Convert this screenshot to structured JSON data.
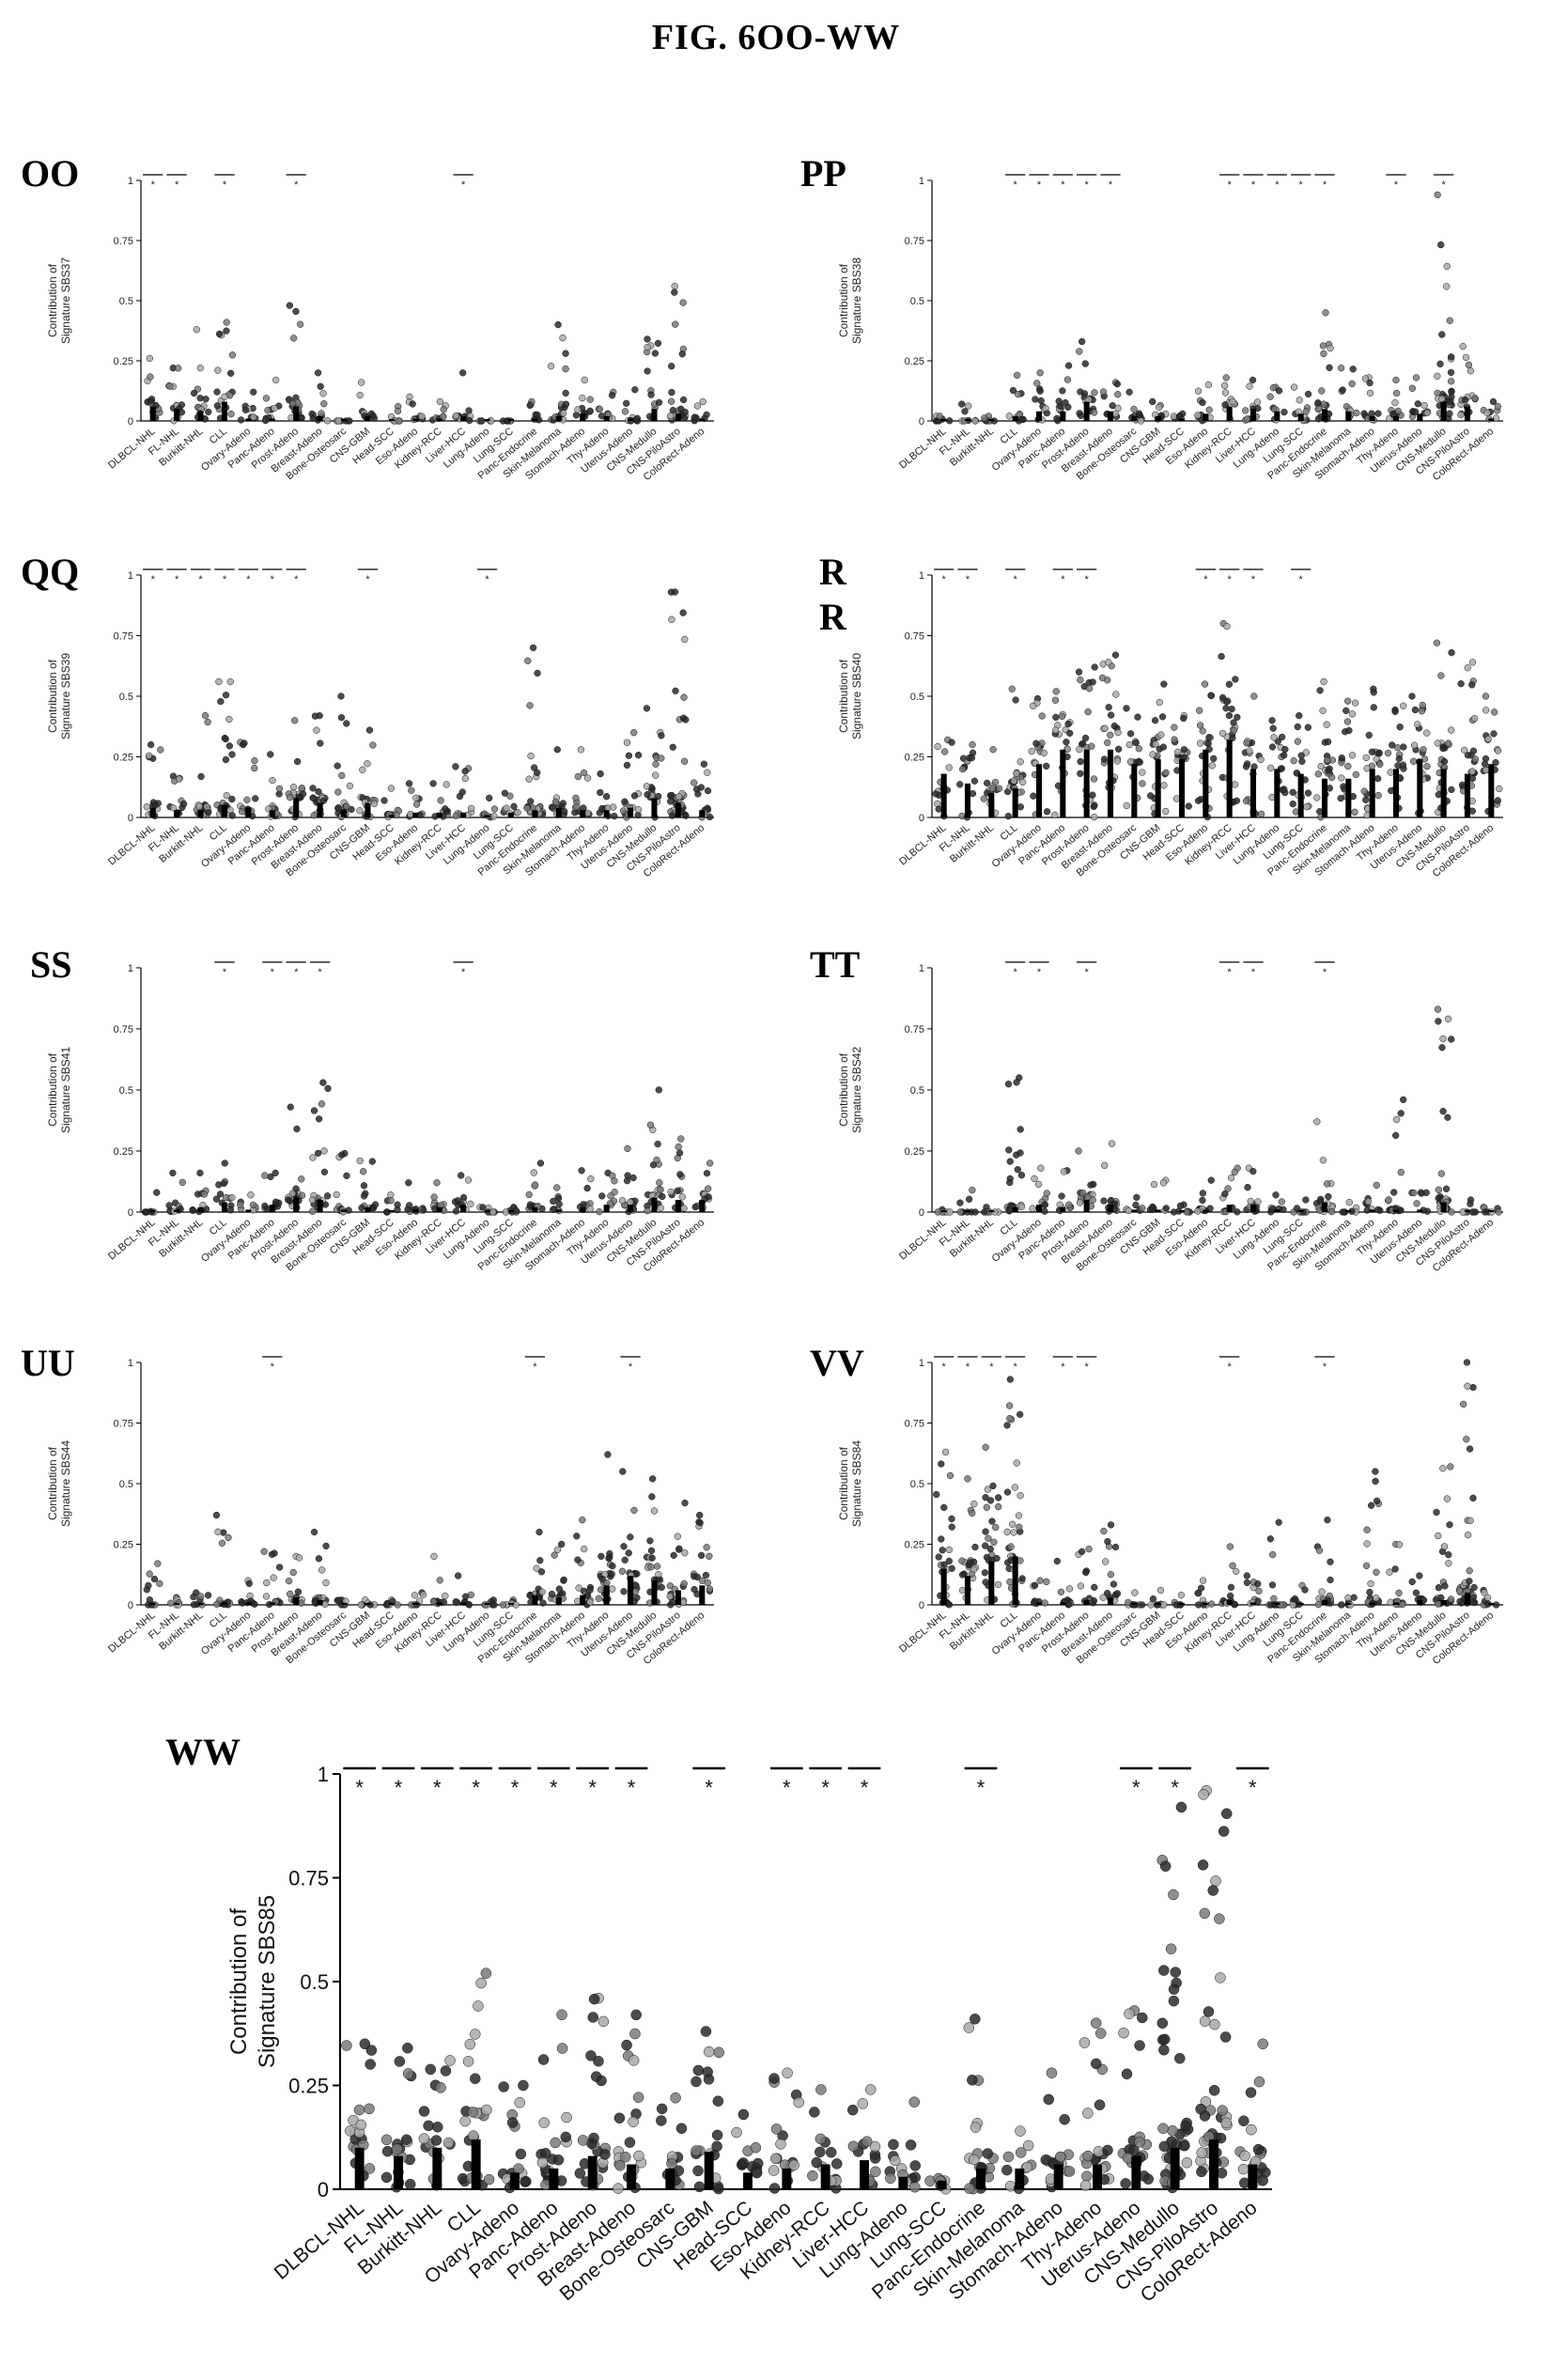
{
  "figure": {
    "title": "FIG. 6OO-WW"
  },
  "categories": [
    "DLBCL-NHL",
    "FL-NHL",
    "Burkitt-NHL",
    "CLL",
    "Ovary-Adeno",
    "Panc-Adeno",
    "Prost-Adeno",
    "Breast-Adeno",
    "Bone-Osteosarc",
    "CNS-GBM",
    "Head-SCC",
    "Eso-Adeno",
    "Kidney-RCC",
    "Liver-HCC",
    "Lung-Adeno",
    "Lung-SCC",
    "Panc-Endocrine",
    "Skin-Melanoma",
    "Stomach-Adeno",
    "Thy-Adeno",
    "Uterus-Adeno",
    "CNS-Medullo",
    "CNS-PiloAstro",
    "ColoRect-Adeno"
  ],
  "y_ticks": [
    "0",
    "0.25",
    "0.5",
    "0.75",
    "1"
  ],
  "chart_data": [
    {
      "panel": "OO",
      "type": "scatter",
      "ylabel": [
        "Contribution of",
        "Signature SBS37"
      ],
      "ylim": [
        0,
        1
      ],
      "medians": [
        0.06,
        0.05,
        0.04,
        0.08,
        0.01,
        0.01,
        0.06,
        0.02,
        0,
        0.02,
        0,
        0.01,
        0.01,
        0.02,
        0,
        0,
        0.01,
        0.02,
        0.03,
        0.02,
        0.01,
        0.05,
        0.03,
        0.01
      ],
      "maxima": [
        0.26,
        0.22,
        0.38,
        0.41,
        0.12,
        0.17,
        0.48,
        0.2,
        0,
        0.16,
        0.06,
        0.1,
        0.08,
        0.2,
        0,
        0,
        0.08,
        0.4,
        0.17,
        0.12,
        0.13,
        0.34,
        0.56,
        0.08
      ],
      "significance": [
        true,
        true,
        false,
        true,
        false,
        false,
        true,
        false,
        false,
        false,
        false,
        false,
        false,
        true,
        false,
        false,
        false,
        false,
        false,
        false,
        false,
        false,
        false,
        false
      ]
    },
    {
      "panel": "PP",
      "type": "scatter",
      "ylabel": [
        "Contribution of",
        "Signature SBS38"
      ],
      "ylim": [
        0,
        1
      ],
      "medians": [
        0,
        0,
        0,
        0.02,
        0.04,
        0.04,
        0.08,
        0.04,
        0.02,
        0.02,
        0.01,
        0.03,
        0.06,
        0.05,
        0.04,
        0.03,
        0.05,
        0.04,
        0.02,
        0.02,
        0.03,
        0.08,
        0.06,
        0.01
      ],
      "maxima": [
        0.02,
        0.07,
        0.02,
        0.19,
        0.2,
        0.23,
        0.33,
        0.16,
        0.12,
        0.08,
        0.03,
        0.15,
        0.18,
        0.17,
        0.14,
        0.14,
        0.45,
        0.22,
        0.18,
        0.17,
        0.18,
        0.94,
        0.31,
        0.08
      ],
      "significance": [
        false,
        false,
        false,
        true,
        true,
        true,
        true,
        true,
        false,
        false,
        false,
        false,
        true,
        true,
        true,
        true,
        true,
        false,
        false,
        true,
        false,
        true,
        false,
        false
      ]
    },
    {
      "panel": "QQ",
      "type": "scatter",
      "ylabel": [
        "Contribution of",
        "Signature SBS39"
      ],
      "ylim": [
        0,
        1
      ],
      "medians": [
        0.04,
        0.03,
        0.03,
        0.05,
        0.04,
        0.03,
        0.08,
        0.06,
        0.03,
        0.06,
        0.01,
        0.02,
        0.02,
        0.02,
        0.01,
        0.02,
        0.03,
        0.04,
        0.03,
        0.03,
        0.04,
        0.08,
        0.06,
        0.03
      ],
      "maxima": [
        0.3,
        0.17,
        0.42,
        0.56,
        0.31,
        0.26,
        0.4,
        0.42,
        0.5,
        0.36,
        0.12,
        0.14,
        0.14,
        0.21,
        0.08,
        0.1,
        0.7,
        0.28,
        0.28,
        0.18,
        0.35,
        0.45,
        0.93,
        0.22
      ],
      "significance": [
        true,
        true,
        true,
        true,
        true,
        true,
        true,
        false,
        false,
        true,
        false,
        false,
        false,
        false,
        true,
        false,
        false,
        false,
        false,
        false,
        false,
        false,
        false,
        false
      ]
    },
    {
      "panel": "RR",
      "type": "scatter",
      "ylabel": [
        "Contribution of",
        "Signature SBS40"
      ],
      "ylim": [
        0,
        1
      ],
      "medians": [
        0.18,
        0.14,
        0.1,
        0.12,
        0.22,
        0.28,
        0.28,
        0.28,
        0.22,
        0.24,
        0.24,
        0.28,
        0.32,
        0.2,
        0.2,
        0.18,
        0.16,
        0.16,
        0.2,
        0.2,
        0.24,
        0.2,
        0.18,
        0.22
      ],
      "maxima": [
        0.32,
        0.3,
        0.28,
        0.53,
        0.49,
        0.52,
        0.62,
        0.67,
        0.45,
        0.55,
        0.42,
        0.55,
        0.8,
        0.5,
        0.4,
        0.42,
        0.56,
        0.48,
        0.53,
        0.46,
        0.5,
        0.72,
        0.64,
        0.5
      ],
      "significance": [
        true,
        true,
        false,
        true,
        false,
        true,
        true,
        false,
        false,
        false,
        false,
        true,
        true,
        true,
        false,
        true,
        false,
        false,
        false,
        false,
        false,
        false,
        false,
        false
      ]
    },
    {
      "panel": "SS",
      "type": "scatter",
      "ylabel": [
        "Contribution of",
        "Signature SBS41"
      ],
      "ylim": [
        0,
        1
      ],
      "medians": [
        0,
        0.01,
        0.02,
        0.04,
        0.01,
        0.03,
        0.06,
        0.05,
        0.01,
        0.02,
        0,
        0.01,
        0.02,
        0.03,
        0,
        0,
        0.02,
        0.01,
        0.02,
        0.03,
        0.03,
        0.06,
        0.05,
        0.05
      ],
      "maxima": [
        0.08,
        0.16,
        0.16,
        0.2,
        0.07,
        0.16,
        0.43,
        0.53,
        0.24,
        0.21,
        0.07,
        0.12,
        0.12,
        0.15,
        0.02,
        0.02,
        0.2,
        0.1,
        0.17,
        0.16,
        0.26,
        0.5,
        0.3,
        0.2
      ],
      "significance": [
        false,
        false,
        false,
        true,
        false,
        true,
        true,
        true,
        false,
        false,
        false,
        false,
        false,
        true,
        false,
        false,
        false,
        false,
        false,
        false,
        false,
        false,
        false,
        false
      ]
    },
    {
      "panel": "TT",
      "type": "scatter",
      "ylabel": [
        "Contribution of",
        "Signature SBS42"
      ],
      "ylim": [
        0,
        1
      ],
      "medians": [
        0,
        0,
        0,
        0.02,
        0.03,
        0.02,
        0.05,
        0.03,
        0.01,
        0.01,
        0,
        0.01,
        0.03,
        0.03,
        0.01,
        0,
        0.04,
        0,
        0.01,
        0.01,
        0.01,
        0.04,
        0,
        0
      ],
      "maxima": [
        0.01,
        0.09,
        0.02,
        0.55,
        0.18,
        0.17,
        0.25,
        0.28,
        0.06,
        0.13,
        0.03,
        0.13,
        0.18,
        0.18,
        0.07,
        0.05,
        0.37,
        0.04,
        0.11,
        0.46,
        0.08,
        0.83,
        0.05,
        0.02
      ],
      "significance": [
        false,
        false,
        false,
        true,
        true,
        false,
        true,
        false,
        false,
        false,
        false,
        false,
        true,
        true,
        false,
        false,
        true,
        false,
        false,
        false,
        false,
        false,
        false,
        false
      ]
    },
    {
      "panel": "UU",
      "type": "scatter",
      "ylabel": [
        "Contribution of",
        "Signature SBS44"
      ],
      "ylim": [
        0,
        1
      ],
      "medians": [
        0,
        0,
        0,
        0.01,
        0.01,
        0.01,
        0.03,
        0.02,
        0,
        0,
        0,
        0,
        0.01,
        0.01,
        0,
        0,
        0.04,
        0.03,
        0.04,
        0.08,
        0.12,
        0.1,
        0.06,
        0.08
      ],
      "maxima": [
        0.17,
        0.03,
        0.05,
        0.37,
        0.1,
        0.22,
        0.2,
        0.3,
        0.02,
        0.02,
        0.02,
        0.05,
        0.2,
        0.12,
        0.02,
        0.02,
        0.3,
        0.25,
        0.35,
        0.62,
        0.55,
        0.52,
        0.42,
        0.37
      ],
      "significance": [
        false,
        false,
        false,
        false,
        false,
        true,
        false,
        false,
        false,
        false,
        false,
        false,
        false,
        false,
        false,
        false,
        true,
        false,
        false,
        false,
        true,
        false,
        false,
        false
      ]
    },
    {
      "panel": "VV",
      "type": "scatter",
      "ylabel": [
        "Contribution of",
        "Signature SBS84"
      ],
      "ylim": [
        0,
        1
      ],
      "medians": [
        0.15,
        0.12,
        0.18,
        0.2,
        0.01,
        0.01,
        0.02,
        0.03,
        0,
        0,
        0,
        0,
        0.02,
        0.01,
        0,
        0,
        0.02,
        0,
        0.01,
        0.01,
        0.02,
        0.02,
        0.05,
        0
      ],
      "maxima": [
        0.63,
        0.52,
        0.65,
        0.93,
        0.1,
        0.18,
        0.23,
        0.33,
        0.05,
        0.06,
        0.04,
        0.1,
        0.24,
        0.12,
        0.34,
        0.08,
        0.35,
        0.03,
        0.55,
        0.25,
        0.12,
        0.57,
        1.0,
        0.06
      ],
      "significance": [
        true,
        true,
        true,
        true,
        false,
        true,
        true,
        false,
        false,
        false,
        false,
        false,
        true,
        false,
        false,
        false,
        true,
        false,
        false,
        false,
        false,
        false,
        false,
        false
      ]
    },
    {
      "panel": "WW",
      "type": "scatter",
      "ylabel": [
        "Contribution of",
        "Signature SBS85"
      ],
      "ylim": [
        0,
        1
      ],
      "medians": [
        0.1,
        0.08,
        0.1,
        0.12,
        0.04,
        0.05,
        0.08,
        0.06,
        0.05,
        0.09,
        0.04,
        0.05,
        0.06,
        0.07,
        0.03,
        0.02,
        0.05,
        0.05,
        0.06,
        0.06,
        0.08,
        0.1,
        0.12,
        0.06
      ],
      "maxima": [
        0.35,
        0.34,
        0.31,
        0.52,
        0.25,
        0.42,
        0.46,
        0.42,
        0.22,
        0.38,
        0.18,
        0.28,
        0.24,
        0.24,
        0.21,
        0.02,
        0.41,
        0.14,
        0.28,
        0.4,
        0.43,
        0.92,
        0.96,
        0.35
      ],
      "significance": [
        true,
        true,
        true,
        true,
        true,
        true,
        true,
        true,
        false,
        true,
        false,
        true,
        true,
        true,
        false,
        false,
        true,
        false,
        false,
        false,
        true,
        true,
        false,
        true
      ]
    }
  ]
}
